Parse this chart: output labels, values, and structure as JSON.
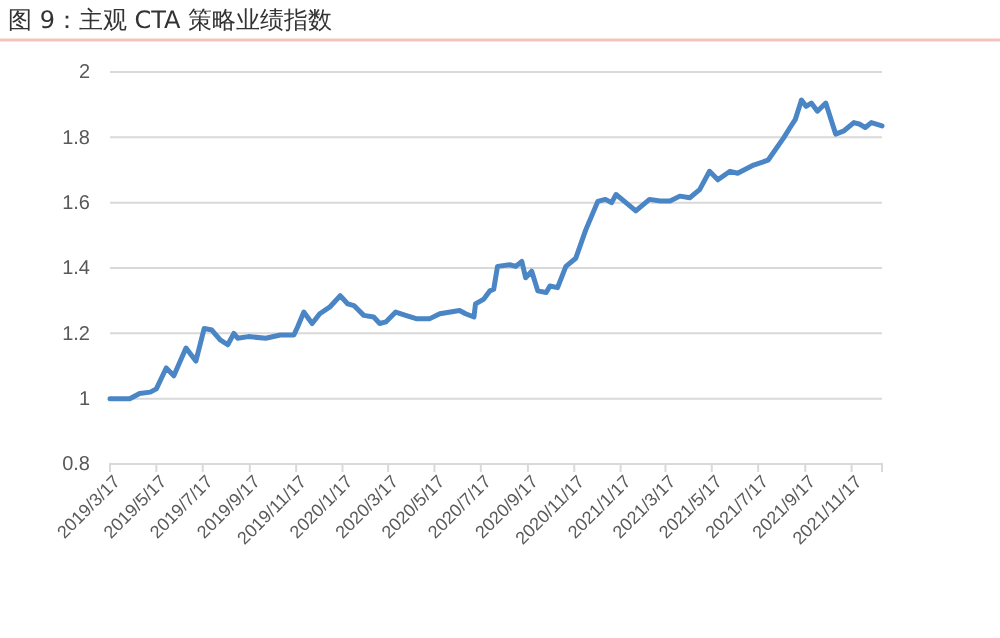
{
  "chart_data": {
    "type": "line",
    "title": "图 9：主观 CTA 策略业绩指数",
    "x": [
      "2019-03-17",
      "2019-04-12",
      "2019-04-25",
      "2019-05-09",
      "2019-05-17",
      "2019-05-30",
      "2019-06-09",
      "2019-06-25",
      "2019-07-08",
      "2019-07-19",
      "2019-07-29",
      "2019-08-09",
      "2019-08-19",
      "2019-08-27",
      "2019-09-01",
      "2019-09-15",
      "2019-10-08",
      "2019-10-27",
      "2019-11-14",
      "2019-11-19",
      "2019-11-27",
      "2019-12-08",
      "2019-12-18",
      "2019-12-31",
      "2020-01-14",
      "2020-01-24",
      "2020-02-01",
      "2020-02-14",
      "2020-02-27",
      "2020-03-06",
      "2020-03-14",
      "2020-03-27",
      "2020-04-09",
      "2020-04-23",
      "2020-05-11",
      "2020-05-24",
      "2020-06-19",
      "2020-06-27",
      "2020-07-08",
      "2020-07-10",
      "2020-07-21",
      "2020-07-29",
      "2020-08-03",
      "2020-08-08",
      "2020-08-24",
      "2020-09-01",
      "2020-09-09",
      "2020-09-14",
      "2020-09-22",
      "2020-09-30",
      "2020-10-11",
      "2020-10-16",
      "2020-10-26",
      "2020-11-06",
      "2020-11-19",
      "2020-12-02",
      "2020-12-18",
      "2020-12-28",
      "2021-01-05",
      "2021-01-11",
      "2021-01-24",
      "2021-02-06",
      "2021-02-24",
      "2021-03-10",
      "2021-03-23",
      "2021-04-05",
      "2021-04-18",
      "2021-05-01",
      "2021-05-14",
      "2021-05-25",
      "2021-06-10",
      "2021-06-20",
      "2021-07-11",
      "2021-07-30",
      "2021-08-20",
      "2021-08-28",
      "2021-09-04",
      "2021-09-12",
      "2021-09-18",
      "2021-09-25",
      "2021-10-03",
      "2021-10-14",
      "2021-10-27",
      "2021-11-07",
      "2021-11-20",
      "2021-11-28",
      "2021-12-05",
      "2021-12-13",
      "2021-12-27"
    ],
    "series": [
      {
        "color": "#4a86c5",
        "values": [
          1.0,
          1.0,
          1.016,
          1.02,
          1.03,
          1.094,
          1.07,
          1.155,
          1.115,
          1.215,
          1.21,
          1.18,
          1.165,
          1.2,
          1.185,
          1.19,
          1.185,
          1.195,
          1.195,
          1.22,
          1.265,
          1.23,
          1.26,
          1.28,
          1.315,
          1.29,
          1.285,
          1.255,
          1.25,
          1.23,
          1.235,
          1.265,
          1.255,
          1.245,
          1.245,
          1.26,
          1.27,
          1.26,
          1.25,
          1.29,
          1.305,
          1.33,
          1.335,
          1.405,
          1.41,
          1.405,
          1.42,
          1.37,
          1.39,
          1.33,
          1.325,
          1.345,
          1.34,
          1.405,
          1.43,
          1.516,
          1.604,
          1.61,
          1.6,
          1.625,
          1.6,
          1.575,
          1.61,
          1.605,
          1.605,
          1.62,
          1.615,
          1.64,
          1.696,
          1.67,
          1.696,
          1.69,
          1.715,
          1.73,
          1.8,
          1.83,
          1.855,
          1.914,
          1.895,
          1.905,
          1.88,
          1.905,
          1.81,
          1.82,
          1.845,
          1.84,
          1.83,
          1.845,
          1.835
        ]
      }
    ],
    "xlim": [
      "2019-03-17",
      "2021-12-27"
    ],
    "xticks": [
      {
        "value": "2019-03-17",
        "label": "2019/3/17"
      },
      {
        "value": "2019-05-17",
        "label": "2019/5/17"
      },
      {
        "value": "2019-07-17",
        "label": "2019/7/17"
      },
      {
        "value": "2019-09-17",
        "label": "2019/9/17"
      },
      {
        "value": "2019-11-17",
        "label": "2019/11/17"
      },
      {
        "value": "2020-01-17",
        "label": "2020/1/17"
      },
      {
        "value": "2020-03-17",
        "label": "2020/3/17"
      },
      {
        "value": "2020-05-17",
        "label": "2020/5/17"
      },
      {
        "value": "2020-07-17",
        "label": "2020/7/17"
      },
      {
        "value": "2020-09-17",
        "label": "2020/9/17"
      },
      {
        "value": "2020-11-17",
        "label": "2020/11/17"
      },
      {
        "value": "2021-01-17",
        "label": "2021/1/17"
      },
      {
        "value": "2021-03-17",
        "label": "2021/3/17"
      },
      {
        "value": "2021-05-17",
        "label": "2021/5/17"
      },
      {
        "value": "2021-07-17",
        "label": "2021/7/17"
      },
      {
        "value": "2021-09-17",
        "label": "2021/9/17"
      },
      {
        "value": "2021-11-17",
        "label": "2021/11/17"
      }
    ],
    "ylim": [
      0.8,
      2
    ],
    "yticks": [
      0.8,
      1,
      1.2,
      1.4,
      1.6,
      1.8,
      2
    ],
    "grid": "y",
    "marker": "none",
    "line_style": "solid"
  }
}
